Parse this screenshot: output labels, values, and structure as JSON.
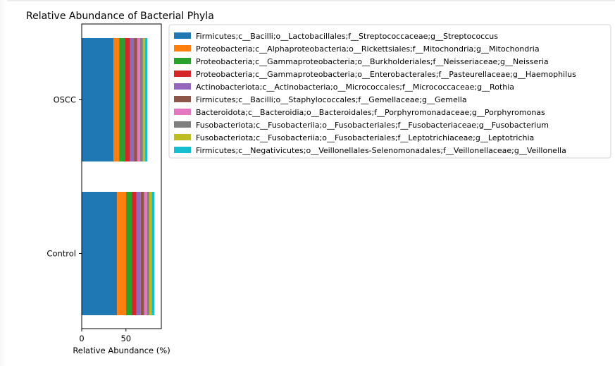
{
  "chart_data": {
    "type": "bar",
    "orientation": "horizontal",
    "stacked": true,
    "title": "Relative Abundance of Bacterial Phyla",
    "xlabel": "Relative Abundance (%)",
    "ylabel": "",
    "categories": [
      "OSCC",
      "Control"
    ],
    "xlim": [
      0,
      90
    ],
    "xticks": [
      "0",
      "50"
    ],
    "grid": false,
    "legend_position": "right",
    "series": [
      {
        "name": "Firmicutes;c__Bacilli;o__Lactobacillales;f__Streptococcaceae;g__Streptococcus",
        "color": "#1f77b4",
        "values": [
          35.9,
          40.0
        ]
      },
      {
        "name": "Proteobacteria;c__Alphaproteobacteria;o__Rickettsiales;f__Mitochondria;g__Mitochondria",
        "color": "#ff7f0e",
        "values": [
          6.4,
          10.2
        ]
      },
      {
        "name": "Proteobacteria;c__Gammaproteobacteria;o__Burkholderiales;f__Neisseriaceae;g__Neisseria",
        "color": "#2ca02c",
        "values": [
          6.4,
          6.4
        ]
      },
      {
        "name": "Proteobacteria;c__Gammaproteobacteria;o__Enterobacterales;f__Pasteurellaceae;g__Haemophilus",
        "color": "#d62728",
        "values": [
          5.8,
          5.1
        ]
      },
      {
        "name": "Actinobacteriota;c__Actinobacteria;o__Micrococcales;f__Micrococcaceae;g__Rothia",
        "color": "#9467bd",
        "values": [
          4.5,
          5.1
        ]
      },
      {
        "name": "Firmicutes;c__Bacilli;o__Staphylococcales;f__Gemellaceae;g__Gemella",
        "color": "#8c564b",
        "values": [
          3.8,
          3.8
        ]
      },
      {
        "name": "Bacteroidota;c__Bacteroidia;o__Bacteroidales;f__Porphyromonadaceae;g__Porphyromonas",
        "color": "#e377c2",
        "values": [
          3.2,
          3.2
        ]
      },
      {
        "name": "Fusobacteriota;c__Fusobacteriia;o__Fusobacteriales;f__Fusobacteriaceae;g__Fusobacterium",
        "color": "#7f7f7f",
        "values": [
          3.2,
          2.6
        ]
      },
      {
        "name": "Fusobacteriota;c__Fusobacteriia;o__Fusobacteriales;f__Leptotrichiaceae;g__Leptotrichia",
        "color": "#bcbd22",
        "values": [
          2.5,
          2.6
        ]
      },
      {
        "name": "Firmicutes;c__Negativicutes;o__Veillonellales-Selenomonadales;f__Veillonellaceae;g__Veillonella",
        "color": "#17becf",
        "values": [
          2.5,
          3.2
        ]
      }
    ]
  }
}
